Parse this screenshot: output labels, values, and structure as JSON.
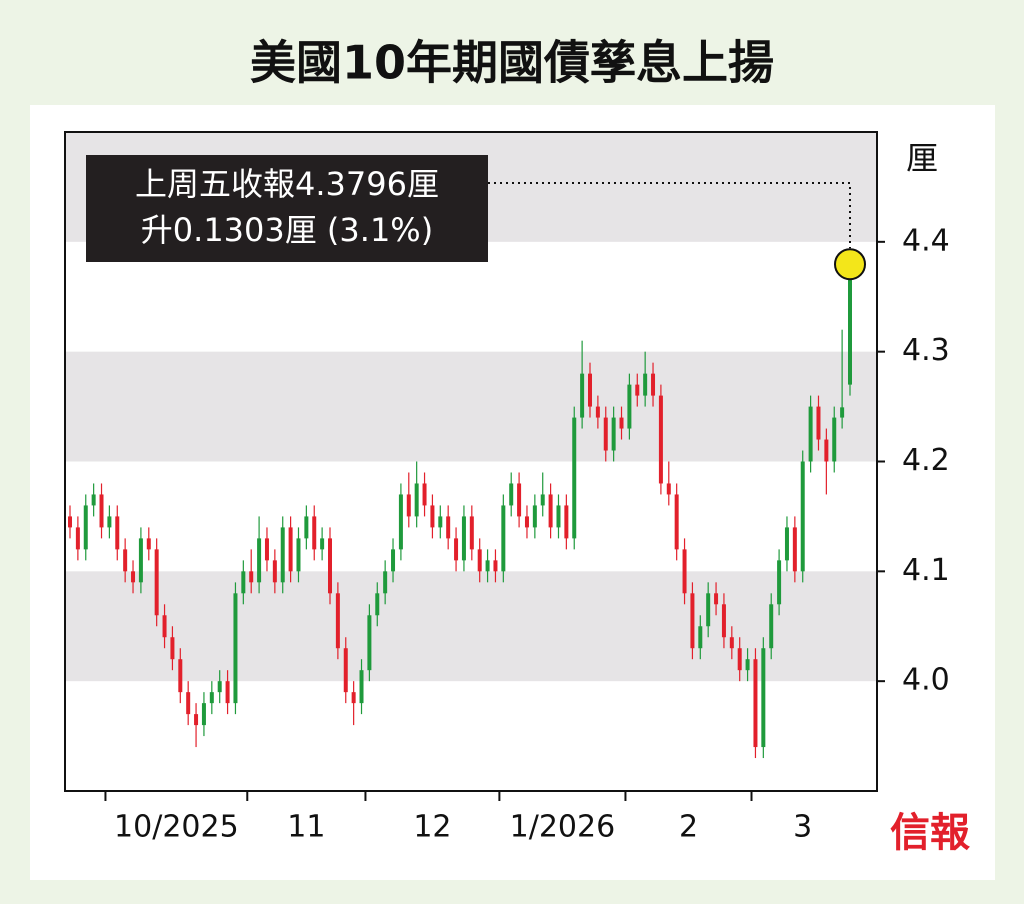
{
  "chart_data": {
    "type": "candlestick",
    "title": "美國10年期國債孳息上揚",
    "y_unit": "厘",
    "source": "信報",
    "annotation": [
      "上周五收報4.3796厘",
      "升0.1303厘 (3.1%)"
    ],
    "ylim": [
      3.9,
      4.5
    ],
    "yticks": [
      {
        "value": 4,
        "label": "4.0"
      },
      4.1,
      4.2,
      4.3,
      4.4
    ],
    "grid": "bands",
    "up_color": "#1f9a3c",
    "down_color": "#e2202b",
    "months": [
      {
        "label": "10/2025",
        "start": 5
      },
      {
        "label": "11",
        "start": 23
      },
      {
        "label": "12",
        "start": 38
      },
      {
        "label": "1/2026",
        "start": 55
      },
      {
        "label": "2",
        "start": 71
      },
      {
        "label": "3",
        "start": 87
      }
    ],
    "open": [
      4.15,
      4.14,
      4.12,
      4.16,
      4.17,
      4.14,
      4.15,
      4.12,
      4.1,
      4.09,
      4.13,
      4.12,
      4.06,
      4.04,
      4.02,
      3.99,
      3.97,
      3.96,
      3.98,
      3.99,
      4.0,
      3.98,
      4.08,
      4.1,
      4.09,
      4.13,
      4.11,
      4.09,
      4.14,
      4.1,
      4.13,
      4.15,
      4.12,
      4.13,
      4.08,
      4.03,
      3.99,
      3.98,
      4.01,
      4.06,
      4.08,
      4.1,
      4.12,
      4.17,
      4.15,
      4.18,
      4.16,
      4.14,
      4.15,
      4.13,
      4.11,
      4.15,
      4.12,
      4.1,
      4.11,
      4.1,
      4.16,
      4.18,
      4.15,
      4.14,
      4.16,
      4.17,
      4.14,
      4.16,
      4.13,
      4.24,
      4.28,
      4.25,
      4.24,
      4.21,
      4.24,
      4.23,
      4.27,
      4.26,
      4.28,
      4.26,
      4.18,
      4.17,
      4.12,
      4.08,
      4.03,
      4.05,
      4.08,
      4.07,
      4.04,
      4.03,
      4.01,
      4.02,
      3.94,
      4.03,
      4.07,
      4.11,
      4.14,
      4.1,
      4.2,
      4.25,
      4.22,
      4.2,
      4.24,
      4.27
    ],
    "high": [
      4.16,
      4.15,
      4.17,
      4.18,
      4.18,
      4.16,
      4.16,
      4.13,
      4.11,
      4.14,
      4.14,
      4.13,
      4.07,
      4.05,
      4.03,
      4.0,
      3.98,
      3.99,
      4.0,
      4.01,
      4.01,
      4.09,
      4.11,
      4.12,
      4.15,
      4.14,
      4.12,
      4.15,
      4.15,
      4.14,
      4.16,
      4.16,
      4.14,
      4.14,
      4.09,
      4.04,
      4.0,
      4.02,
      4.07,
      4.09,
      4.11,
      4.13,
      4.18,
      4.19,
      4.2,
      4.19,
      4.17,
      4.16,
      4.16,
      4.14,
      4.16,
      4.16,
      4.13,
      4.12,
      4.12,
      4.17,
      4.19,
      4.19,
      4.16,
      4.17,
      4.19,
      4.18,
      4.17,
      4.17,
      4.25,
      4.31,
      4.29,
      4.26,
      4.25,
      4.25,
      4.25,
      4.28,
      4.28,
      4.3,
      4.29,
      4.27,
      4.2,
      4.18,
      4.13,
      4.09,
      4.06,
      4.09,
      4.09,
      4.08,
      4.05,
      4.04,
      4.03,
      4.03,
      4.04,
      4.08,
      4.12,
      4.15,
      4.15,
      4.21,
      4.26,
      4.26,
      4.23,
      4.25,
      4.32,
      4.38
    ],
    "low": [
      4.13,
      4.11,
      4.11,
      4.15,
      4.13,
      4.13,
      4.11,
      4.09,
      4.08,
      4.08,
      4.11,
      4.05,
      4.03,
      4.01,
      3.98,
      3.96,
      3.94,
      3.95,
      3.97,
      3.98,
      3.97,
      3.97,
      4.07,
      4.08,
      4.08,
      4.1,
      4.08,
      4.08,
      4.09,
      4.09,
      4.12,
      4.11,
      4.11,
      4.07,
      4.02,
      3.98,
      3.96,
      3.97,
      4.0,
      4.05,
      4.07,
      4.09,
      4.11,
      4.14,
      4.14,
      4.15,
      4.13,
      4.13,
      4.12,
      4.1,
      4.1,
      4.11,
      4.09,
      4.09,
      4.09,
      4.09,
      4.15,
      4.14,
      4.13,
      4.13,
      4.15,
      4.13,
      4.13,
      4.12,
      4.12,
      4.23,
      4.24,
      4.23,
      4.2,
      4.2,
      4.22,
      4.22,
      4.25,
      4.25,
      4.25,
      4.17,
      4.16,
      4.11,
      4.07,
      4.02,
      4.02,
      4.04,
      4.06,
      4.03,
      4.02,
      4.0,
      4.0,
      3.93,
      3.93,
      4.02,
      4.06,
      4.1,
      4.09,
      4.09,
      4.19,
      4.21,
      4.17,
      4.19,
      4.23,
      4.26
    ],
    "close": [
      4.14,
      4.12,
      4.16,
      4.17,
      4.14,
      4.15,
      4.12,
      4.1,
      4.09,
      4.13,
      4.12,
      4.06,
      4.04,
      4.02,
      3.99,
      3.97,
      3.96,
      3.98,
      3.99,
      4.0,
      3.98,
      4.08,
      4.1,
      4.09,
      4.13,
      4.11,
      4.09,
      4.14,
      4.1,
      4.13,
      4.15,
      4.12,
      4.13,
      4.08,
      4.03,
      3.99,
      3.98,
      4.01,
      4.06,
      4.08,
      4.1,
      4.12,
      4.17,
      4.15,
      4.18,
      4.16,
      4.14,
      4.15,
      4.13,
      4.11,
      4.15,
      4.12,
      4.1,
      4.11,
      4.1,
      4.16,
      4.18,
      4.15,
      4.14,
      4.16,
      4.17,
      4.14,
      4.16,
      4.13,
      4.24,
      4.28,
      4.25,
      4.24,
      4.21,
      4.24,
      4.23,
      4.27,
      4.26,
      4.28,
      4.26,
      4.18,
      4.17,
      4.12,
      4.08,
      4.03,
      4.05,
      4.08,
      4.07,
      4.04,
      4.03,
      4.01,
      4.02,
      3.94,
      4.03,
      4.07,
      4.11,
      4.14,
      4.1,
      4.2,
      4.25,
      4.22,
      4.2,
      4.24,
      4.2493,
      4.3796
    ]
  }
}
